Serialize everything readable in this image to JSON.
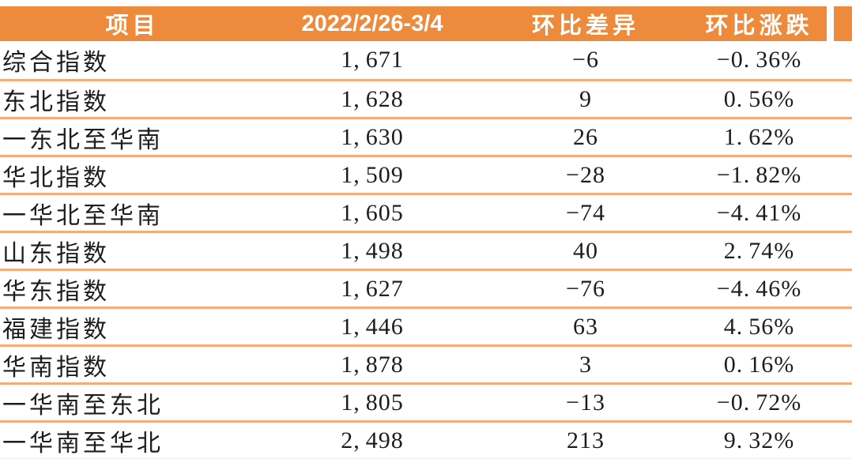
{
  "colors": {
    "header_bg": "#EE8A3C",
    "row_divider": "#F5AC79",
    "header_text": "#FFFFFF",
    "body_text": "#1D1D1D"
  },
  "chart_data": {
    "type": "table",
    "title": "",
    "columns": [
      "项目",
      "2022/2/26-3/4",
      "环比差异",
      "环比涨跌"
    ],
    "rows": [
      [
        "综合指数",
        "1,671",
        "-6",
        "-0.36%"
      ],
      [
        "东北指数",
        "1,628",
        "9",
        "0.56%"
      ],
      [
        "一东北至华南",
        "1,630",
        "26",
        "1.62%"
      ],
      [
        "华北指数",
        "1,509",
        "-28",
        "-1.82%"
      ],
      [
        "一华北至华南",
        "1,605",
        "-74",
        "-4.41%"
      ],
      [
        "山东指数",
        "1,498",
        "40",
        "2.74%"
      ],
      [
        "华东指数",
        "1,627",
        "-76",
        "-4.46%"
      ],
      [
        "福建指数",
        "1,446",
        "63",
        "4.56%"
      ],
      [
        "华南指数",
        "1,878",
        "3",
        "0.16%"
      ],
      [
        "一华南至东北",
        "1,805",
        "-13",
        "-0.72%"
      ],
      [
        "一华南至华北",
        "2,498",
        "213",
        "9.32%"
      ]
    ]
  }
}
